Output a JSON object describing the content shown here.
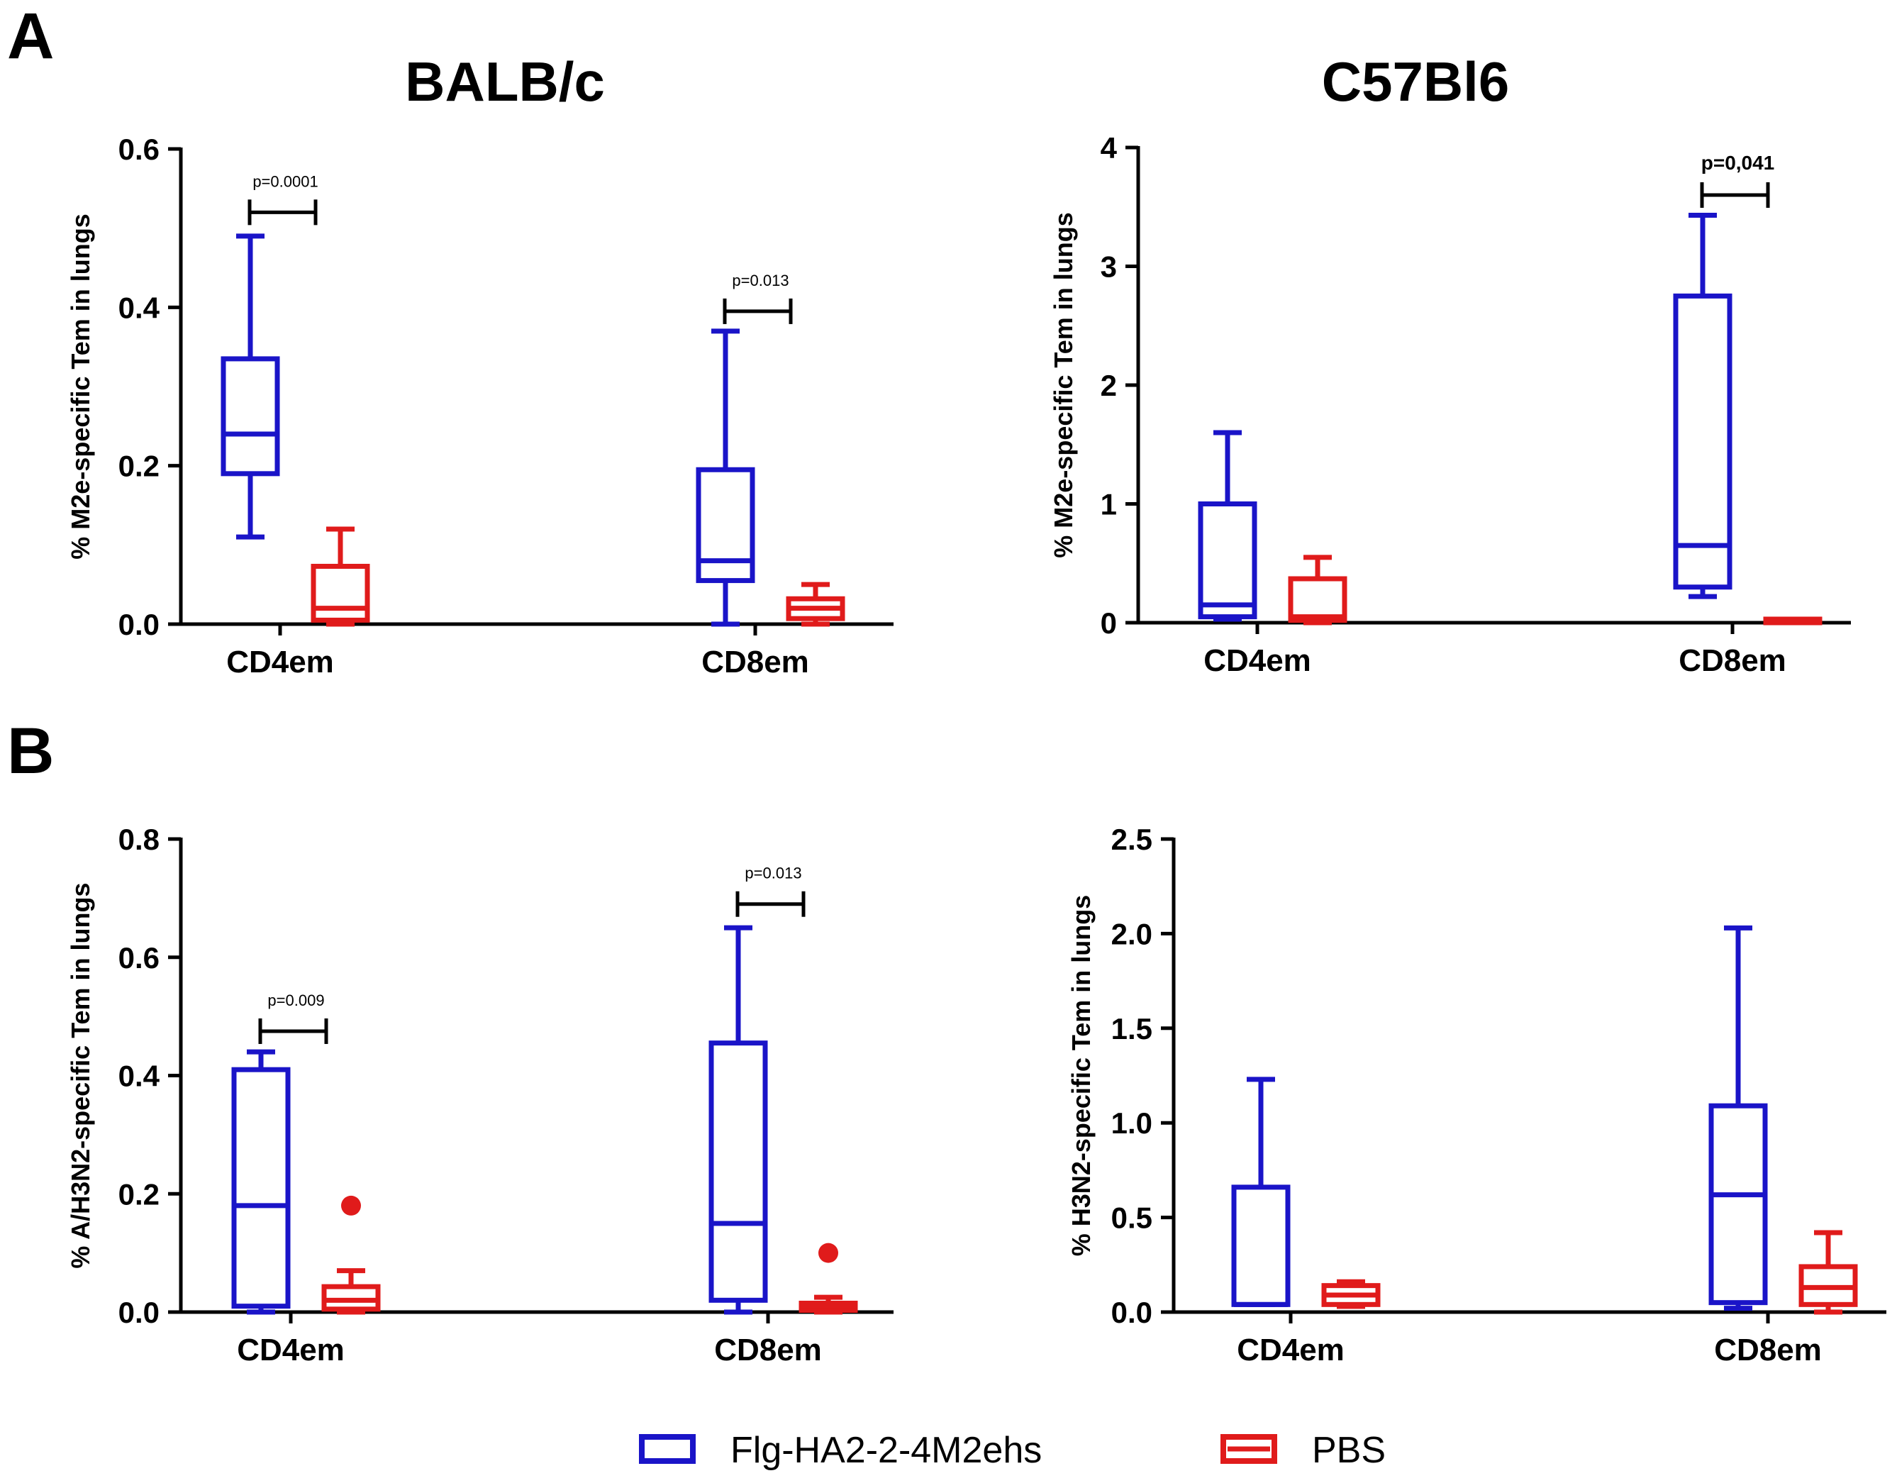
{
  "panels": {
    "A": "A",
    "B": "B"
  },
  "strains": {
    "balbc": "BALB/c",
    "c57": "C57Bl6"
  },
  "legend": [
    {
      "label": "Flg-HA2-2-4M2ehs",
      "color": "#1a14c8"
    },
    {
      "label": "PBS",
      "color": "#e01b1b"
    }
  ],
  "chart_data": [
    {
      "type": "box",
      "panel": "A",
      "title": "BALB/c",
      "ylabel": "% M2e-specific Tem in lungs",
      "ylim": [
        0,
        0.6
      ],
      "yticks": [
        "0.0",
        "0.2",
        "0.4",
        "0.6"
      ],
      "categories": [
        "CD4em",
        "CD8em"
      ],
      "series": [
        {
          "name": "Flg-HA2-2-4M2ehs",
          "boxes": [
            {
              "min": 0.11,
              "q1": 0.19,
              "median": 0.24,
              "q3": 0.335,
              "max": 0.49
            },
            {
              "min": 0.0,
              "q1": 0.055,
              "median": 0.08,
              "q3": 0.195,
              "max": 0.37
            }
          ]
        },
        {
          "name": "PBS",
          "boxes": [
            {
              "min": 0.0,
              "q1": 0.005,
              "median": 0.02,
              "q3": 0.073,
              "max": 0.12
            },
            {
              "min": 0.0,
              "q1": 0.007,
              "median": 0.02,
              "q3": 0.032,
              "max": 0.05
            }
          ]
        }
      ],
      "annotations": [
        {
          "category": "CD4em",
          "text": "p=0.0001",
          "y": 0.52
        },
        {
          "category": "CD8em",
          "text": "p=0.013",
          "y": 0.395
        }
      ]
    },
    {
      "type": "box",
      "panel": "A",
      "title": "C57Bl6",
      "ylabel": "% M2e-specific Tem in lungs",
      "ylim": [
        0,
        4
      ],
      "yticks": [
        "0",
        "1",
        "2",
        "3",
        "4"
      ],
      "categories": [
        "CD4em",
        "CD8em"
      ],
      "series": [
        {
          "name": "Flg-HA2-2-4M2ehs",
          "boxes": [
            {
              "min": 0.03,
              "q1": 0.05,
              "median": 0.15,
              "q3": 1.0,
              "max": 1.6
            },
            {
              "min": 0.22,
              "q1": 0.3,
              "median": 0.65,
              "q3": 2.75,
              "max": 3.43
            }
          ]
        },
        {
          "name": "PBS",
          "boxes": [
            {
              "min": 0.0,
              "q1": 0.02,
              "median": 0.05,
              "q3": 0.37,
              "max": 0.55
            },
            {
              "min": 0.0,
              "q1": 0.0,
              "median": 0.01,
              "q3": 0.03,
              "max": 0.03
            }
          ]
        }
      ],
      "annotations": [
        {
          "category": "CD8em",
          "text": "p=0,041",
          "y": 3.6
        }
      ]
    },
    {
      "type": "box",
      "panel": "B",
      "title": "",
      "ylabel": "% A/H3N2-specific Tem in lungs",
      "ylim": [
        0,
        0.8
      ],
      "yticks": [
        "0.0",
        "0.2",
        "0.4",
        "0.6",
        "0.8"
      ],
      "categories": [
        "CD4em",
        "CD8em"
      ],
      "series": [
        {
          "name": "Flg-HA2-2-4M2ehs",
          "boxes": [
            {
              "min": 0.0,
              "q1": 0.01,
              "median": 0.18,
              "q3": 0.41,
              "max": 0.44
            },
            {
              "min": 0.0,
              "q1": 0.02,
              "median": 0.15,
              "q3": 0.455,
              "max": 0.65
            }
          ]
        },
        {
          "name": "PBS",
          "boxes": [
            {
              "min": 0.0,
              "q1": 0.005,
              "median": 0.02,
              "q3": 0.043,
              "max": 0.07,
              "outliers": [
                0.18
              ]
            },
            {
              "min": 0.0,
              "q1": 0.003,
              "median": 0.01,
              "q3": 0.015,
              "max": 0.025,
              "outliers": [
                0.1
              ]
            }
          ]
        }
      ],
      "annotations": [
        {
          "category": "CD4em",
          "text": "p=0.009",
          "y": 0.475
        },
        {
          "category": "CD8em",
          "text": "p=0.013",
          "y": 0.69
        }
      ]
    },
    {
      "type": "box",
      "panel": "B",
      "title": "",
      "ylabel": "% H3N2-specific Tem in lungs",
      "ylim": [
        0,
        2.5
      ],
      "yticks": [
        "0.0",
        "0.5",
        "1.0",
        "1.5",
        "2.0",
        "2.5"
      ],
      "categories": [
        "CD4em",
        "CD8em"
      ],
      "series": [
        {
          "name": "Flg-HA2-2-4M2ehs",
          "boxes": [
            {
              "min": 0.04,
              "q1": 0.04,
              "median": 0.04,
              "q3": 0.66,
              "max": 1.23
            },
            {
              "min": 0.02,
              "q1": 0.05,
              "median": 0.62,
              "q3": 1.09,
              "max": 2.03
            }
          ]
        },
        {
          "name": "PBS",
          "boxes": [
            {
              "min": 0.03,
              "q1": 0.04,
              "median": 0.09,
              "q3": 0.14,
              "max": 0.16
            },
            {
              "min": 0.0,
              "q1": 0.04,
              "median": 0.13,
              "q3": 0.24,
              "max": 0.42
            }
          ]
        }
      ],
      "annotations": []
    }
  ]
}
